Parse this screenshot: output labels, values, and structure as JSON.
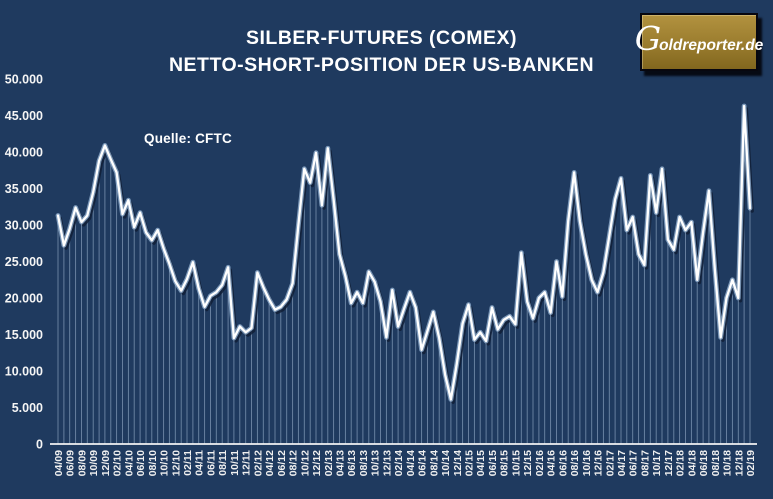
{
  "header": {
    "title_line1": "SILBER-FUTURES (COMEX)",
    "title_line2": "NETTO-SHORT-POSITION DER US-BANKEN"
  },
  "logo": {
    "full": "Goldreporter.de",
    "initial": "G",
    "rest": "oldreporter.de"
  },
  "colors": {
    "background": "#1F3A5F",
    "text": "#FFFFFF",
    "line": "#FFFFFF",
    "line_glow": "#A3C0E0",
    "line_shadow": "#101F36",
    "drop_lines": "rgba(176,198,224,0.55)",
    "logo_gold": "#9A7C2E"
  },
  "chart_data": {
    "type": "line",
    "title": "SILBER-FUTURES (COMEX) — NETTO-SHORT-POSITION DER US-BANKEN",
    "source": "Quelle: CFTC",
    "ylabel": "",
    "xlabel": "",
    "ylim": [
      0,
      50000
    ],
    "grid": false,
    "legend_position": "none",
    "y_ticks": [
      {
        "value": 0,
        "label": "0"
      },
      {
        "value": 5000,
        "label": "5.000"
      },
      {
        "value": 10000,
        "label": "10.000"
      },
      {
        "value": 15000,
        "label": "15.000"
      },
      {
        "value": 20000,
        "label": "20.000"
      },
      {
        "value": 25000,
        "label": "25.000"
      },
      {
        "value": 30000,
        "label": "30.000"
      },
      {
        "value": 35000,
        "label": "35.000"
      },
      {
        "value": 40000,
        "label": "40.000"
      },
      {
        "value": 45000,
        "label": "45.000"
      },
      {
        "value": 50000,
        "label": "50.000"
      }
    ],
    "x_tick_labels": [
      "04/09",
      "06/09",
      "08/09",
      "10/09",
      "12/09",
      "02/10",
      "04/10",
      "06/10",
      "08/10",
      "10/10",
      "12/10",
      "02/11",
      "04/11",
      "06/11",
      "08/11",
      "10/11",
      "12/11",
      "02/12",
      "04/12",
      "06/12",
      "08/12",
      "10/12",
      "12/12",
      "02/13",
      "04/13",
      "06/13",
      "08/13",
      "10/13",
      "12/13",
      "02/14",
      "04/14",
      "06/14",
      "08/14",
      "10/14",
      "12/14",
      "02/15",
      "04/15",
      "06/15",
      "08/15",
      "10/15",
      "12/15",
      "02/16",
      "04/16",
      "06/16",
      "08/16",
      "10/16",
      "12/16",
      "02/17",
      "04/17",
      "06/17",
      "08/17",
      "10/17",
      "12/17",
      "02/18",
      "04/18",
      "06/18",
      "08/18",
      "10/18",
      "12/18",
      "02/19"
    ],
    "x_months": [
      "04/09",
      "05/09",
      "06/09",
      "07/09",
      "08/09",
      "09/09",
      "10/09",
      "11/09",
      "12/09",
      "01/10",
      "02/10",
      "03/10",
      "04/10",
      "05/10",
      "06/10",
      "07/10",
      "08/10",
      "09/10",
      "10/10",
      "11/10",
      "12/10",
      "01/11",
      "02/11",
      "03/11",
      "04/11",
      "05/11",
      "06/11",
      "07/11",
      "08/11",
      "09/11",
      "10/11",
      "11/11",
      "12/11",
      "01/12",
      "02/12",
      "03/12",
      "04/12",
      "05/12",
      "06/12",
      "07/12",
      "08/12",
      "09/12",
      "10/12",
      "11/12",
      "12/12",
      "01/13",
      "02/13",
      "03/13",
      "04/13",
      "05/13",
      "06/13",
      "07/13",
      "08/13",
      "09/13",
      "10/13",
      "11/13",
      "12/13",
      "01/14",
      "02/14",
      "03/14",
      "04/14",
      "05/14",
      "06/14",
      "07/14",
      "08/14",
      "09/14",
      "10/14",
      "11/14",
      "12/14",
      "01/15",
      "02/15",
      "03/15",
      "04/15",
      "05/15",
      "06/15",
      "07/15",
      "08/15",
      "09/15",
      "10/15",
      "11/15",
      "12/15",
      "01/16",
      "02/16",
      "03/16",
      "04/16",
      "05/16",
      "06/16",
      "07/16",
      "08/16",
      "09/16",
      "10/16",
      "11/16",
      "12/16",
      "01/17",
      "02/17",
      "03/17",
      "04/17",
      "05/17",
      "06/17",
      "07/17",
      "08/17",
      "09/17",
      "10/17",
      "11/17",
      "12/17",
      "01/18",
      "02/18",
      "03/18",
      "04/18",
      "05/18",
      "06/18",
      "07/18",
      "08/18",
      "09/18",
      "10/18",
      "11/18",
      "12/18",
      "01/19",
      "02/19"
    ],
    "series": [
      {
        "name": "Netto-Short-Position der US-Banken (Kontrakte)",
        "values": [
          31300,
          27200,
          29500,
          32400,
          30400,
          31300,
          34500,
          38800,
          40900,
          39000,
          37200,
          31500,
          33400,
          29700,
          31700,
          29000,
          27900,
          29300,
          26800,
          24700,
          22300,
          21000,
          22600,
          24900,
          21300,
          18800,
          20300,
          20800,
          21800,
          24200,
          14500,
          16100,
          15300,
          15900,
          23500,
          21500,
          19800,
          18400,
          18800,
          19800,
          22000,
          30000,
          37700,
          35800,
          39900,
          32700,
          40500,
          33500,
          26000,
          23000,
          19300,
          20800,
          19300,
          23600,
          22200,
          19500,
          14600,
          21100,
          16100,
          18500,
          20800,
          18700,
          12900,
          15500,
          18100,
          14500,
          9500,
          6100,
          11000,
          16500,
          19100,
          14300,
          15300,
          14100,
          18700,
          15700,
          17000,
          17500,
          16400,
          26200,
          19500,
          17200,
          20000,
          20800,
          18000,
          25000,
          20200,
          30500,
          37200,
          30500,
          26000,
          22500,
          20800,
          23500,
          28500,
          33500,
          36400,
          29300,
          31100,
          26000,
          24500,
          36800,
          31700,
          37700,
          28000,
          26600,
          31100,
          29300,
          30400,
          22500,
          29000,
          34700,
          24000,
          14600,
          20000,
          22500,
          20000,
          46300,
          32300
        ]
      }
    ]
  }
}
